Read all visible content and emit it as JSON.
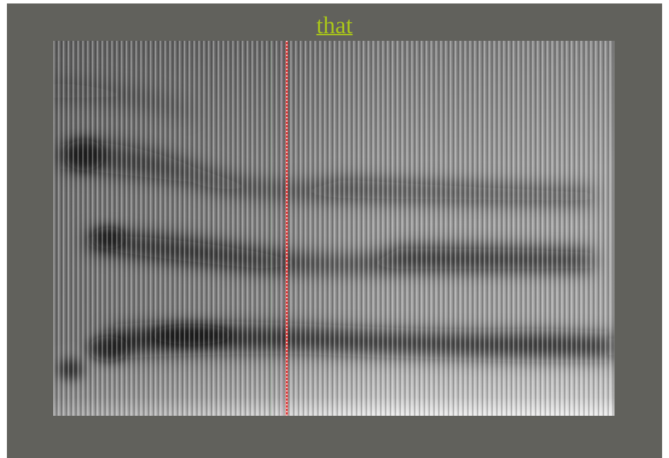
{
  "header": {
    "title": "that"
  }
}
